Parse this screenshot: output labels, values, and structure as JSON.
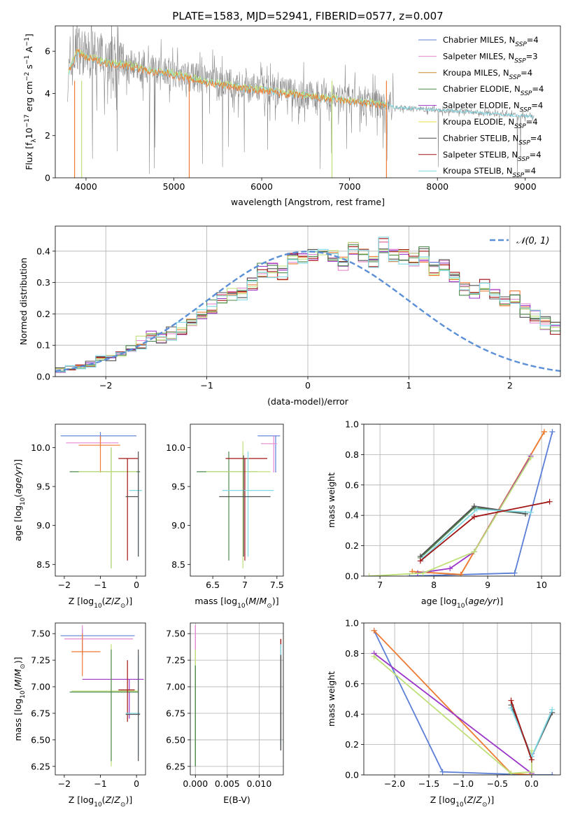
{
  "figure_title": "PLATE=1583, MJD=52941, FIBERID=0577, z=0.007",
  "colors": {
    "Chabrier MILES": "#5b7fd6",
    "Salpeter MILES": "#e58ad0",
    "Kroupa MILES": "#c9892a",
    "Chabrier ELODIE": "#4f8a4f",
    "Salpeter ELODIE": "#9b35c8",
    "Kroupa ELODIE": "#e3e04a",
    "Chabrier STELIB": "#505050",
    "Salpeter STELIB": "#a11414",
    "Kroupa STELIB": "#7fd9e6",
    "orange": "#ee7b33",
    "lightgreen": "#bfe078",
    "data_gray": "#8c8c8c",
    "gauss": "#5b8fd6"
  },
  "chart_data": [
    {
      "id": "spectrum",
      "type": "line",
      "title": "PLATE=1583, MJD=52941, FIBERID=0577, z=0.007",
      "xlabel": "wavelength [Angstrom, rest frame]",
      "ylabel": "Flux [f_λ 10^-17 erg cm^-2 s^-1 A^-1]",
      "xlim": [
        3650,
        9400
      ],
      "ylim": [
        0,
        7.2
      ],
      "xticks": [
        4000,
        5000,
        6000,
        7000,
        8000,
        9000
      ],
      "yticks": [
        0,
        2,
        4,
        6
      ],
      "legend_position": "top-right",
      "legend": [
        "Chabrier MILES, N_SSP=4",
        "Salpeter MILES, N_SSP=3",
        "Kroupa MILES, N_SSP=4",
        "Chabrier ELODIE, N_SSP=4",
        "Salpeter ELODIE, N_SSP=4",
        "Kroupa ELODIE, N_SSP=4",
        "Chabrier STELIB, N_SSP=4",
        "Salpeter STELIB, N_SSP=4",
        "Kroupa STELIB, N_SSP=4"
      ],
      "data_series": {
        "x": [
          3800,
          3900,
          4000,
          4100,
          4200,
          4300,
          4400,
          4500,
          4600,
          4700,
          4800,
          4900,
          5000,
          5200,
          5400,
          5600,
          5800,
          6000,
          6200,
          6400,
          6600,
          6800,
          7000,
          7200,
          7400,
          7500,
          7700,
          8000,
          8300,
          8600,
          8900,
          9100
        ],
        "y": [
          4.8,
          6.2,
          5.8,
          5.9,
          5.7,
          5.6,
          5.5,
          5.5,
          5.3,
          5.2,
          5.1,
          5.2,
          5.0,
          4.8,
          4.6,
          4.5,
          4.3,
          4.2,
          4.1,
          4.0,
          3.9,
          3.8,
          3.75,
          3.6,
          3.5,
          3.35,
          3.3,
          3.2,
          3.15,
          3.05,
          2.95,
          2.9
        ]
      },
      "model_series": {
        "x": [
          3800,
          3900,
          4000,
          4100,
          4200,
          4300,
          4400,
          4500,
          4600,
          4700,
          4800,
          4900,
          5000,
          5200,
          5400,
          5600,
          5800,
          6000,
          6200,
          6400,
          6600,
          6800,
          7000,
          7200,
          7400
        ],
        "y": [
          5.0,
          6.0,
          5.7,
          5.6,
          5.5,
          5.4,
          5.4,
          5.3,
          5.2,
          5.1,
          5.0,
          5.0,
          4.9,
          4.7,
          4.5,
          4.4,
          4.25,
          4.15,
          4.05,
          3.95,
          3.85,
          3.75,
          3.65,
          3.55,
          3.45
        ]
      }
    },
    {
      "id": "residuals",
      "type": "step",
      "xlabel": "(data-model)/error",
      "ylabel": "Normed distribution",
      "xlim": [
        -2.5,
        2.5
      ],
      "ylim": [
        0,
        0.48
      ],
      "xticks": [
        -2,
        -1,
        0,
        1,
        2
      ],
      "yticks": [
        0.0,
        0.1,
        0.2,
        0.3,
        0.4
      ],
      "grid": true,
      "legend_position": "top-right",
      "legend": [
        "𝒩(0, 1)"
      ],
      "bin_width": 0.1,
      "bin_start": -2.5,
      "values": [
        0.02,
        0.03,
        0.03,
        0.04,
        0.06,
        0.06,
        0.07,
        0.09,
        0.11,
        0.12,
        0.13,
        0.14,
        0.15,
        0.18,
        0.2,
        0.22,
        0.25,
        0.26,
        0.26,
        0.3,
        0.34,
        0.34,
        0.33,
        0.38,
        0.37,
        0.39,
        0.41,
        0.38,
        0.36,
        0.41,
        0.39,
        0.36,
        0.42,
        0.39,
        0.38,
        0.37,
        0.39,
        0.34,
        0.36,
        0.32,
        0.28,
        0.27,
        0.29,
        0.27,
        0.23,
        0.25,
        0.21,
        0.19,
        0.17,
        0.16,
        0.15,
        0.13,
        0.12,
        0.1,
        0.09,
        0.08,
        0.07,
        0.06,
        0.05,
        0.05,
        0.04,
        0.03,
        0.03,
        0.03,
        0.02,
        0.02,
        0.02,
        0.02,
        0.02,
        0.02
      ]
    },
    {
      "id": "age_vs_Z",
      "type": "errorbar",
      "xlabel": "Z [log10(Z/Z_sun)]",
      "ylabel": "age [log10(age/yr)]",
      "xlim": [
        -2.25,
        0.25
      ],
      "ylim": [
        8.35,
        10.3
      ],
      "xticks": [
        -2,
        -1,
        0
      ],
      "yticks": [
        8.5,
        9.0,
        9.5,
        10.0
      ],
      "crosses": [
        {
          "x": -1.0,
          "y": 10.15,
          "x_lo": -2.1,
          "x_hi": 0.0,
          "y_lo": 10.1,
          "y_hi": 10.2,
          "color": "Chabrier MILES"
        },
        {
          "x": -1.0,
          "y": 10.06,
          "x_lo": -1.95,
          "x_hi": -0.5,
          "y_lo": 10.0,
          "y_hi": 10.15,
          "color": "Salpeter MILES"
        },
        {
          "x": -1.0,
          "y": 10.03,
          "x_lo": -1.6,
          "x_hi": -0.45,
          "y_lo": 9.68,
          "y_hi": 10.15,
          "color": "orange"
        },
        {
          "x": -0.7,
          "y": 9.69,
          "x_lo": -1.85,
          "x_hi": 0.1,
          "y_lo": 8.45,
          "y_hi": 10.0,
          "color": "Chabrier ELODIE"
        },
        {
          "x": -0.7,
          "y": 9.69,
          "x_lo": -1.6,
          "x_hi": 0.0,
          "y_lo": 8.45,
          "y_hi": 10.0,
          "color": "lightgreen"
        },
        {
          "x": -0.25,
          "y": 9.86,
          "x_lo": -0.5,
          "x_hi": 0.05,
          "y_lo": 8.55,
          "y_hi": 9.86,
          "color": "Salpeter STELIB"
        },
        {
          "x": 0.05,
          "y": 9.45,
          "x_lo": -0.2,
          "x_hi": 0.15,
          "y_lo": 8.6,
          "y_hi": 9.7,
          "color": "Kroupa STELIB"
        },
        {
          "x": 0.05,
          "y": 9.37,
          "x_lo": -0.3,
          "x_hi": 0.05,
          "y_lo": 8.6,
          "y_hi": 9.95,
          "color": "Chabrier STELIB"
        }
      ]
    },
    {
      "id": "age_vs_mass",
      "type": "errorbar",
      "xlabel": "mass [log10(M/M_sun)]",
      "ylabel": "",
      "xlim": [
        6.15,
        7.6
      ],
      "ylim": [
        8.35,
        10.3
      ],
      "xticks": [
        6.5,
        7.0,
        7.5
      ],
      "yticks": [
        8.5,
        9.0,
        9.5,
        10.0
      ],
      "crosses": [
        {
          "x": 7.48,
          "y": 10.15,
          "x_lo": 7.2,
          "x_hi": 7.55,
          "y_lo": 9.68,
          "y_hi": 10.15,
          "color": "Chabrier MILES"
        },
        {
          "x": 7.45,
          "y": 10.05,
          "x_lo": 7.25,
          "x_hi": 7.5,
          "y_lo": 9.68,
          "y_hi": 10.15,
          "color": "Salpeter MILES"
        },
        {
          "x": 6.75,
          "y": 9.69,
          "x_lo": 6.25,
          "x_hi": 7.2,
          "y_lo": 8.55,
          "y_hi": 9.95,
          "color": "Chabrier ELODIE"
        },
        {
          "x": 6.97,
          "y": 9.69,
          "x_lo": 6.4,
          "x_hi": 7.4,
          "y_lo": 8.45,
          "y_hi": 10.08,
          "color": "lightgreen"
        },
        {
          "x": 7.0,
          "y": 9.86,
          "x_lo": 6.7,
          "x_hi": 7.35,
          "y_lo": 8.55,
          "y_hi": 9.86,
          "color": "Salpeter STELIB"
        },
        {
          "x": 7.05,
          "y": 9.45,
          "x_lo": 6.65,
          "x_hi": 7.45,
          "y_lo": 8.6,
          "y_hi": 9.95,
          "color": "Kroupa STELIB"
        },
        {
          "x": 6.98,
          "y": 9.37,
          "x_lo": 6.6,
          "x_hi": 7.4,
          "y_lo": 8.6,
          "y_hi": 9.9,
          "color": "Chabrier STELIB"
        }
      ]
    },
    {
      "id": "mass_weight_vs_age",
      "type": "line",
      "xlabel": "age [log10(age/yr)]",
      "ylabel": "mass weight",
      "xlim": [
        6.7,
        10.35
      ],
      "ylim": [
        0,
        1.0
      ],
      "xticks": [
        7,
        8,
        9,
        10
      ],
      "yticks": [
        0.0,
        0.2,
        0.4,
        0.6,
        0.8,
        1.0
      ],
      "grid": true,
      "series": [
        {
          "name": "Chabrier MILES",
          "x": [
            7.55,
            9.5,
            10.2
          ],
          "y": [
            0.0,
            0.02,
            0.95
          ]
        },
        {
          "name": "Kroupa MILES",
          "x": [
            7.6,
            8.5,
            10.05
          ],
          "y": [
            0.03,
            0.01,
            0.95
          ]
        },
        {
          "name": "orange",
          "x": [
            7.6,
            8.5,
            10.05
          ],
          "y": [
            0.03,
            0.01,
            0.95
          ]
        },
        {
          "name": "Salpeter ELODIE",
          "x": [
            7.7,
            8.3,
            8.75,
            9.8
          ],
          "y": [
            0.02,
            0.05,
            0.16,
            0.79
          ]
        },
        {
          "name": "lightgreen",
          "x": [
            6.8,
            7.8,
            8.75,
            9.8
          ],
          "y": [
            0.0,
            0.02,
            0.16,
            0.78
          ]
        },
        {
          "name": "Chabrier ELODIE",
          "x": [
            7.75,
            8.75,
            9.7
          ],
          "y": [
            0.12,
            0.45,
            0.41
          ]
        },
        {
          "name": "Chabrier STELIB",
          "x": [
            7.75,
            8.75,
            9.7
          ],
          "y": [
            0.13,
            0.46,
            0.41
          ]
        },
        {
          "name": "Kroupa STELIB",
          "x": [
            7.8,
            8.8,
            9.8
          ],
          "y": [
            0.12,
            0.44,
            0.42
          ]
        },
        {
          "name": "Salpeter STELIB",
          "x": [
            7.75,
            8.75,
            10.15
          ],
          "y": [
            0.1,
            0.39,
            0.49
          ]
        }
      ]
    },
    {
      "id": "mass_vs_Z",
      "type": "errorbar",
      "xlabel": "Z [log10(Z/Z_sun)]",
      "ylabel": "mass [log10(M/M_sun)]",
      "xlim": [
        -2.25,
        0.25
      ],
      "ylim": [
        6.17,
        7.6
      ],
      "xticks": [
        -2,
        -1,
        0
      ],
      "yticks": [
        6.25,
        6.5,
        6.75,
        7.0,
        7.25,
        7.5
      ],
      "crosses": [
        {
          "x": -1.5,
          "y": 7.48,
          "x_lo": -2.1,
          "x_hi": -0.05,
          "y_lo": 7.3,
          "y_hi": 7.55,
          "color": "Chabrier MILES"
        },
        {
          "x": -1.5,
          "y": 7.45,
          "x_lo": -2.0,
          "x_hi": -0.1,
          "y_lo": 7.3,
          "y_hi": 7.58,
          "color": "Salpeter MILES"
        },
        {
          "x": -1.5,
          "y": 7.33,
          "x_lo": -1.8,
          "x_hi": -1.0,
          "y_lo": 7.1,
          "y_hi": 7.5,
          "color": "orange"
        },
        {
          "x": -0.2,
          "y": 7.07,
          "x_lo": -1.5,
          "x_hi": 0.2,
          "y_lo": 6.7,
          "y_hi": 7.07,
          "color": "Salpeter ELODIE"
        },
        {
          "x": -0.7,
          "y": 6.96,
          "x_lo": -1.8,
          "x_hi": 0.05,
          "y_lo": 6.25,
          "y_hi": 7.4,
          "color": "lightgreen"
        },
        {
          "x": -0.7,
          "y": 6.95,
          "x_lo": -1.85,
          "x_hi": 0.05,
          "y_lo": 6.3,
          "y_hi": 7.35,
          "color": "Chabrier ELODIE"
        },
        {
          "x": -0.25,
          "y": 6.97,
          "x_lo": -0.5,
          "x_hi": -0.05,
          "y_lo": 6.67,
          "y_hi": 7.25,
          "color": "Salpeter STELIB"
        },
        {
          "x": 0.05,
          "y": 6.75,
          "x_lo": -0.3,
          "x_hi": 0.1,
          "y_lo": 6.35,
          "y_hi": 7.3,
          "color": "Kroupa STELIB"
        },
        {
          "x": 0.05,
          "y": 6.74,
          "x_lo": -0.3,
          "x_hi": 0.1,
          "y_lo": 6.3,
          "y_hi": 7.35,
          "color": "Chabrier STELIB"
        }
      ]
    },
    {
      "id": "mass_vs_ebv",
      "type": "errorbar",
      "xlabel": "E(B-V)",
      "ylabel": "",
      "xlim": [
        -0.0008,
        0.0138
      ],
      "ylim": [
        6.17,
        7.6
      ],
      "xticks": [
        0.0,
        0.005,
        0.01
      ],
      "xticklabels": [
        "0.000",
        "0.005",
        "0.010"
      ],
      "yticks": [
        6.25,
        6.5,
        6.75,
        7.0,
        7.25,
        7.5
      ],
      "grid": true,
      "crosses": [
        {
          "x": 0.0,
          "y": 7.3,
          "x_lo": 0.0,
          "x_hi": 0.0,
          "y_lo": 6.9,
          "y_hi": 7.58,
          "color": "Salpeter MILES"
        },
        {
          "x": 0.0,
          "y": 6.9,
          "x_lo": 0.0,
          "x_hi": 0.0,
          "y_lo": 6.3,
          "y_hi": 7.35,
          "color": "lightgreen"
        },
        {
          "x": 0.0,
          "y": 6.8,
          "x_lo": 0.0,
          "x_hi": 0.0,
          "y_lo": 6.25,
          "y_hi": 7.2,
          "color": "Chabrier ELODIE"
        },
        {
          "x": 0.0134,
          "y": 6.95,
          "x_lo": 0.0134,
          "x_hi": 0.0134,
          "y_lo": 6.5,
          "y_hi": 7.45,
          "color": "Salpeter STELIB"
        },
        {
          "x": 0.0134,
          "y": 6.9,
          "x_lo": 0.0134,
          "x_hi": 0.0134,
          "y_lo": 6.45,
          "y_hi": 7.4,
          "color": "Kroupa STELIB"
        },
        {
          "x": 0.0134,
          "y": 6.85,
          "x_lo": 0.0134,
          "x_hi": 0.0134,
          "y_lo": 6.4,
          "y_hi": 7.3,
          "color": "Chabrier STELIB"
        }
      ]
    },
    {
      "id": "mass_weight_vs_Z",
      "type": "line",
      "xlabel": "Z [log10(Z/Z_sun)]",
      "ylabel": "mass weight",
      "xlim": [
        -2.45,
        0.42
      ],
      "ylim": [
        0,
        1.0
      ],
      "xticks": [
        -2.0,
        -1.5,
        -1.0,
        -0.5,
        0.0
      ],
      "yticks": [
        0.0,
        0.2,
        0.4,
        0.6,
        0.8,
        1.0
      ],
      "grid": true,
      "series": [
        {
          "name": "Chabrier MILES",
          "x": [
            -2.3,
            -1.3,
            0.0,
            0.3
          ],
          "y": [
            0.95,
            0.02,
            0.0,
            0.0
          ]
        },
        {
          "name": "orange",
          "x": [
            -2.3,
            -0.3,
            0.0
          ],
          "y": [
            0.95,
            0.01,
            0.0
          ]
        },
        {
          "name": "Salpeter ELODIE",
          "x": [
            -2.3,
            0.0,
            0.0
          ],
          "y": [
            0.8,
            0.01,
            0.14
          ]
        },
        {
          "name": "lightgreen",
          "x": [
            -2.3,
            -0.3,
            0.0,
            0.0
          ],
          "y": [
            0.78,
            0.01,
            0.02,
            0.16
          ]
        },
        {
          "name": "Chabrier STELIB",
          "x": [
            -0.3,
            0.0,
            0.3
          ],
          "y": [
            0.46,
            0.12,
            0.41
          ]
        },
        {
          "name": "Kroupa STELIB",
          "x": [
            -0.3,
            0.0,
            0.3
          ],
          "y": [
            0.44,
            0.12,
            0.43
          ]
        },
        {
          "name": "Salpeter STELIB",
          "x": [
            -0.3,
            0.0
          ],
          "y": [
            0.49,
            0.1
          ]
        }
      ]
    }
  ]
}
